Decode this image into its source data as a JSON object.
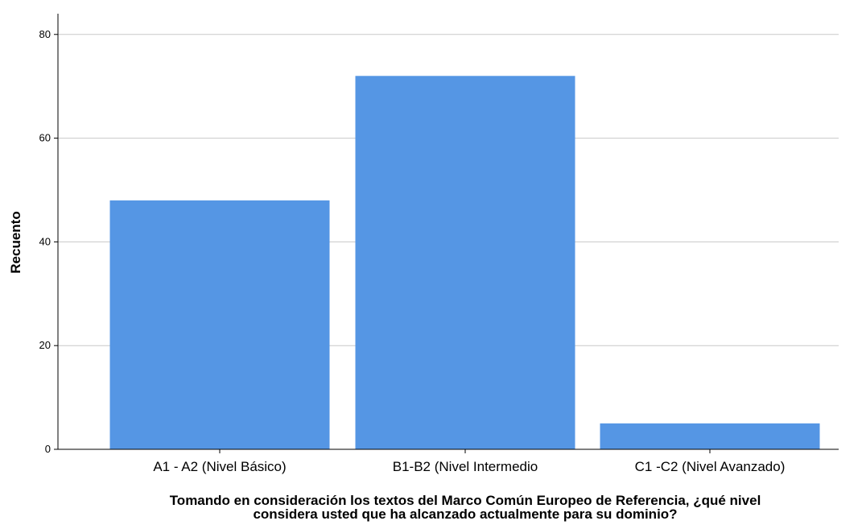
{
  "chart_data": {
    "type": "bar",
    "categories": [
      "A1 - A2 (Nivel Básico)",
      "B1-B2 (Nivel Intermedio",
      "C1 -C2 (Nivel Avanzado)"
    ],
    "values": [
      48,
      72,
      5
    ],
    "title": "",
    "xlabel_lines": [
      "Tomando en consideración los textos del Marco Común Europeo de Referencia, ¿qué nivel",
      "considera usted que ha alcanzado actualmente para su dominio?"
    ],
    "ylabel": "Recuento",
    "ylim": [
      0,
      84
    ],
    "yticks": [
      0,
      20,
      40,
      60,
      80
    ],
    "grid": true,
    "bar_color": "#5596e4",
    "grid_color": "#c8c8c8",
    "axis_color": "#000000"
  }
}
